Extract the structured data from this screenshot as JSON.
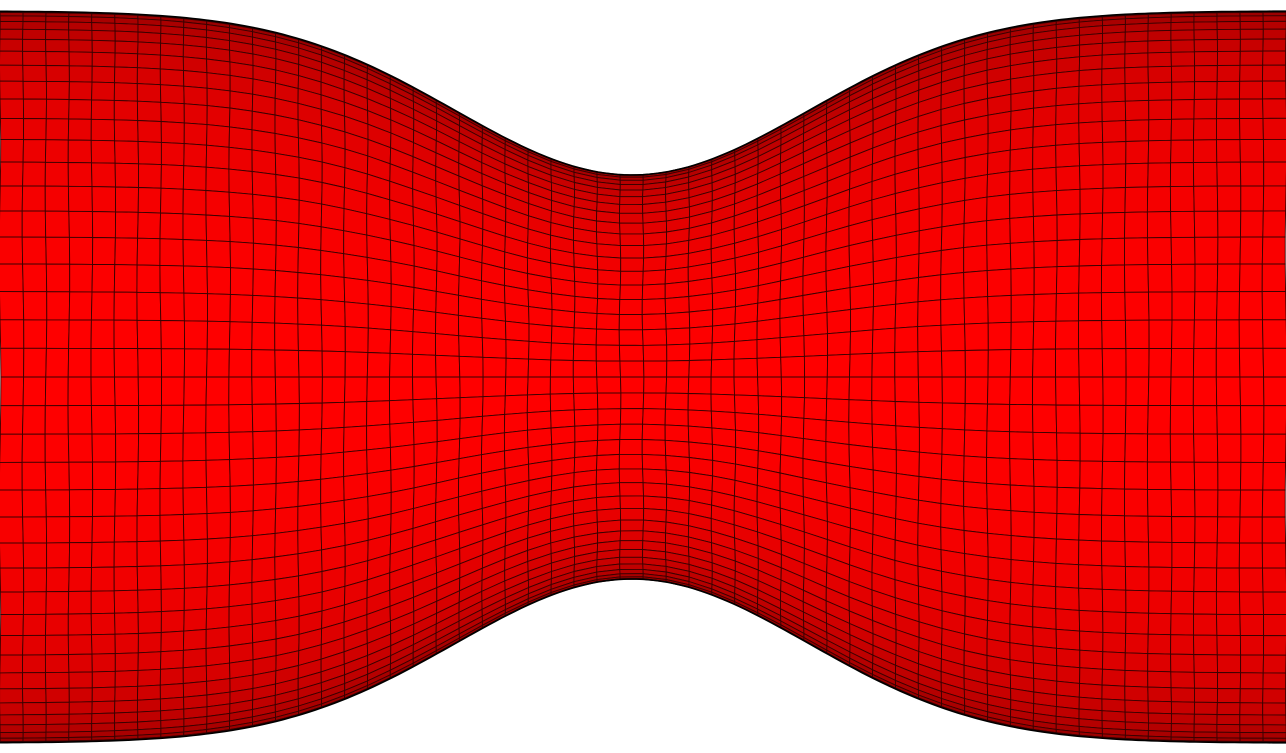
{
  "scene": {
    "object": "stenosed-vessel-mesh",
    "background_color": "#ffffff",
    "surface_color": "#ff0000",
    "edge_color": "#3a0000",
    "outline_color": "#000000",
    "axial_divisions": 56,
    "circumferential_divisions": 40,
    "stenosis_fraction": 0.42
  }
}
